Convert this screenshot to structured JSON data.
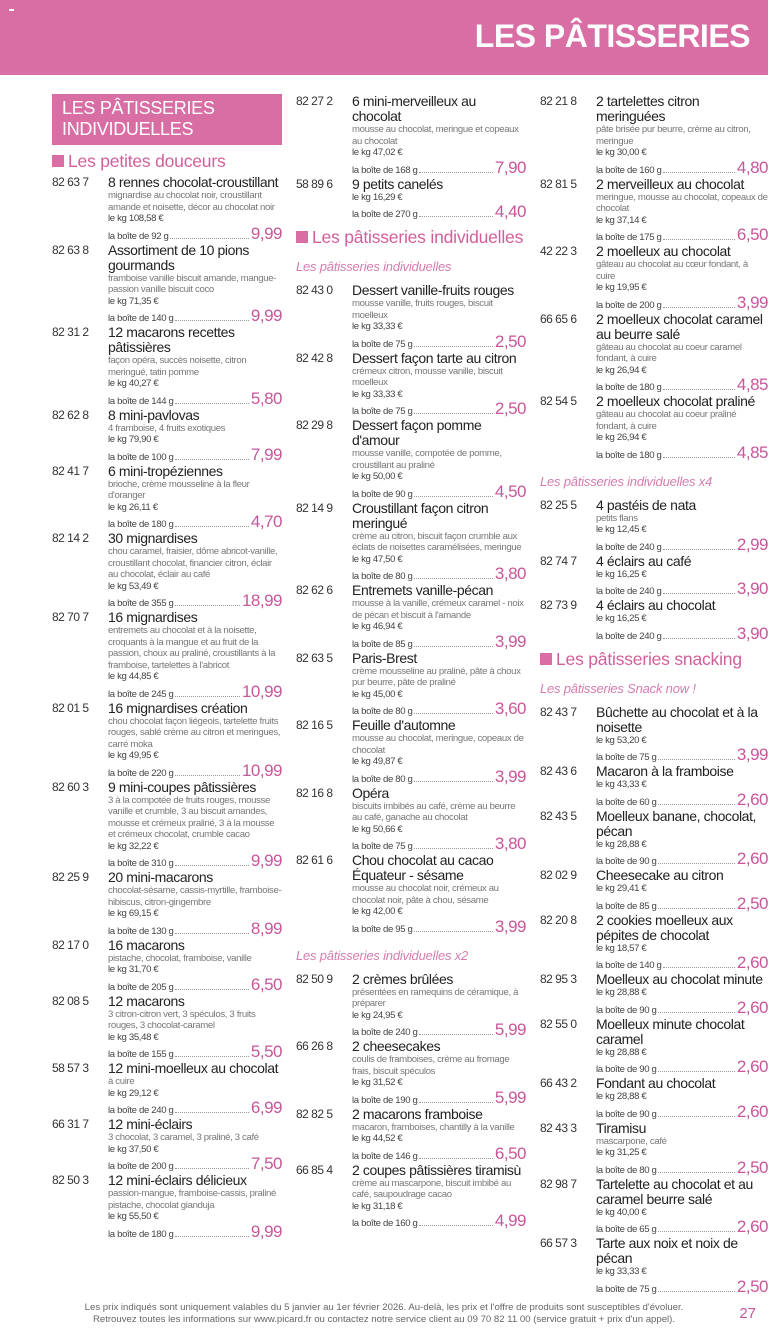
{
  "header": {
    "title": "LES PÂTISSERIES"
  },
  "colors": {
    "brand_pink": "#d96ea5",
    "price_pink": "#c9569a"
  },
  "columns": [
    {
      "blocks": [
        {
          "type": "banner",
          "text": "LES PÂTISSERIES INDIVIDUELLES"
        },
        {
          "type": "section",
          "text": "Les petites douceurs"
        },
        {
          "type": "item",
          "code": "82 63 7",
          "name": "8 rennes chocolat-croustillant",
          "desc": "mignardise au chocolat noir, croustillant amande et noisette, décor au chocolat noir",
          "kg": "le kg 108,58 €",
          "box": "la boîte de 92 g",
          "price": "9,99"
        },
        {
          "type": "item",
          "code": "82 63 8",
          "name": "Assortiment de 10 pions gourmands",
          "desc": "framboise vanille biscuit amande, mangue-passion vanille biscuit coco",
          "kg": "le kg 71,35 €",
          "box": "la boîte de 140 g",
          "price": "9,99"
        },
        {
          "type": "item",
          "code": "82 31 2",
          "name": "12 macarons recettes pâtissières",
          "desc": "façon opéra, succès noisette, citron meringué, tatin pomme",
          "kg": "le kg 40,27 €",
          "box": "la boîte de 144 g",
          "price": "5,80"
        },
        {
          "type": "item",
          "code": "82 62 8",
          "name": "8 mini-pavlovas",
          "desc": "4 framboise, 4 fruits exotiques",
          "kg": "le kg 79,90 €",
          "box": "la boîte de 100 g",
          "price": "7,99"
        },
        {
          "type": "item",
          "code": "82 41 7",
          "name": "6 mini-tropéziennes",
          "desc": "brioche, crème mousseline à la fleur d'oranger",
          "kg": "le kg 26,11 €",
          "box": "la boîte de 180 g",
          "price": "4,70"
        },
        {
          "type": "item",
          "code": "82 14 2",
          "name": "30 mignardises",
          "desc": "chou caramel, fraisier, dôme abricot-vanille, croustillant chocolat, financier citron, éclair au chocolat, éclair au café",
          "kg": "le kg 53,49 €",
          "box": "la boîte de 355 g",
          "price": "18,99"
        },
        {
          "type": "item",
          "code": "82 70 7",
          "name": "16 mignardises",
          "desc": "entremets au chocolat et à la noisette, croquants à la mangue et au fruit de la passion, choux au praliné, croustillants à la framboise, tartelettes à l'abricot",
          "kg": "le kg 44,85 €",
          "box": "la boîte de 245 g",
          "price": "10,99"
        },
        {
          "type": "item",
          "code": "82 01 5",
          "name": "16 mignardises création",
          "desc": "chou chocolat façon liégeois, tartelette fruits rouges, sablé crème au citron et meringues, carré moka",
          "kg": "le kg 49,95 €",
          "box": "la boîte de 220 g",
          "price": "10,99"
        },
        {
          "type": "item",
          "code": "82 60 3",
          "name": "9 mini-coupes pâtissières",
          "desc": "3 à la compotée de fruits rouges, mousse vanille et crumble, 3 au biscuit amandes, mousse et crémeux praliné, 3 à la mousse et crémeux chocolat, crumble cacao",
          "kg": "le kg 32,22 €",
          "box": "la boîte de 310 g",
          "price": "9,99"
        },
        {
          "type": "item",
          "code": "82 25 9",
          "name": "20 mini-macarons",
          "desc": "chocolat-sésame, cassis-myrtille, framboise-hibiscus, citron-gingembre",
          "kg": "le kg 69,15 €",
          "box": "la boîte de 130 g",
          "price": "8,99"
        },
        {
          "type": "item",
          "code": "82 17 0",
          "name": "16 macarons",
          "desc": "pistache, chocolat, framboise, vanille",
          "kg": "le kg 31,70 €",
          "box": "la boîte de 205 g",
          "price": "6,50"
        },
        {
          "type": "item",
          "code": "82 08 5",
          "name": "12 macarons",
          "desc": "3 citron-citron vert, 3 spéculos, 3 fruits rouges, 3 chocolat-caramel",
          "kg": "le kg 35,48 €",
          "box": "la boîte de 155 g",
          "price": "5,50"
        },
        {
          "type": "item",
          "code": "58 57 3",
          "name": "12 mini-moelleux au chocolat",
          "desc": "à cuire",
          "kg": "le kg 29,12 €",
          "box": "la boîte de 240 g",
          "price": "6,99"
        },
        {
          "type": "item",
          "code": "66 31 7",
          "name": "12 mini-éclairs",
          "desc": "3 chocolat, 3 caramel, 3 praliné, 3 café",
          "kg": "le kg 37,50 €",
          "box": "la boîte de 200 g",
          "price": "7,50"
        },
        {
          "type": "item",
          "code": "82 50 3",
          "name": "12 mini-éclairs délicieux",
          "desc": "passion-mangue, framboise-cassis, praliné pistache, chocolat gianduja",
          "kg": "le kg 55,50 €",
          "box": "la boîte de 180 g",
          "price": "9,99"
        }
      ]
    },
    {
      "blocks": [
        {
          "type": "item",
          "code": "82 27 2",
          "name": "6 mini-merveilleux au chocolat",
          "desc": "mousse au chocolat, meringue et copeaux au chocolat",
          "kg": "le kg 47,02 €",
          "box": "la boîte de 168 g",
          "price": "7,90"
        },
        {
          "type": "item",
          "code": "58 89 6",
          "name": "9 petits canelés",
          "kg": "le kg 16,29 €",
          "box": "la boîte de 270 g",
          "price": "4,40"
        },
        {
          "type": "section",
          "text": "Les pâtisseries individuelles"
        },
        {
          "type": "subsection",
          "text": "Les pâtisseries individuelles"
        },
        {
          "type": "item",
          "code": "82 43 0",
          "name": "Dessert vanille-fruits rouges",
          "desc": "mousse vanille, fruits rouges, biscuit moelleux",
          "kg": "le kg 33,33 €",
          "box": "la boîte de 75 g",
          "price": "2,50"
        },
        {
          "type": "item",
          "code": "82 42 8",
          "name": "Dessert façon tarte au citron",
          "desc": "crémeux citron, mousse vanille, biscuit moelleux",
          "kg": "le kg 33,33 €",
          "box": "la boîte de 75 g",
          "price": "2,50"
        },
        {
          "type": "item",
          "code": "82 29 8",
          "name": "Dessert façon pomme d'amour",
          "desc": "mousse vanille, compotée de pomme, croustillant au praliné",
          "kg": "le kg 50,00 €",
          "box": "la boîte de 90 g",
          "price": "4,50"
        },
        {
          "type": "item",
          "code": "82 14 9",
          "name": "Croustillant façon citron meringué",
          "desc": "crème au citron, biscuit façon crumble aux éclats de noisettes caramélisées, meringue",
          "kg": "le kg 47,50 €",
          "box": "la boîte de 80 g",
          "price": "3,80"
        },
        {
          "type": "item",
          "code": "82 62 6",
          "name": "Entremets vanille-pécan",
          "desc": "mousse à la vanille, crémeux caramel - noix de pécan et biscuit à l'amande",
          "kg": "le kg 46,94 €",
          "box": "la boîte de 85 g",
          "price": "3,99"
        },
        {
          "type": "item",
          "code": "82 63 5",
          "name": "Paris-Brest",
          "desc": "crème mousseline au praliné, pâte à choux pur beurre, pâte de praliné",
          "kg": "le kg 45,00 €",
          "box": "la boîte de 80 g",
          "price": "3,60"
        },
        {
          "type": "item",
          "code": "82 16 5",
          "name": "Feuille d'automne",
          "desc": "mousse au chocolat, meringue, copeaux de chocolat",
          "kg": "le kg 49,87 €",
          "box": "la boîte de 80 g",
          "price": "3,99"
        },
        {
          "type": "item",
          "code": "82 16 8",
          "name": "Opéra",
          "desc": "biscuits imbibés au café, crème au beurre au café, ganache au chocolat",
          "kg": "le kg 50,66 €",
          "box": "la boîte de 75 g",
          "price": "3,80"
        },
        {
          "type": "item",
          "code": "82 61 6",
          "name": "Chou chocolat au cacao Équateur - sésame",
          "desc": "mousse au chocolat noir, crémeux au chocolat noir, pâte à chou, sésame",
          "kg": "le kg 42,00 €",
          "box": "la boîte de 95 g",
          "price": "3,99"
        },
        {
          "type": "subsection",
          "text": "Les pâtisseries individuelles x2"
        },
        {
          "type": "item",
          "code": "82 50 9",
          "name": "2 crèmes brûlées",
          "desc": "présentées en ramequins de céramique, à préparer",
          "kg": "le kg 24,95 €",
          "box": "la boîte de 240 g",
          "price": "5,99"
        },
        {
          "type": "item",
          "code": "66 26 8",
          "name": "2 cheesecakes",
          "desc": "coulis de framboises, crème au fromage frais, biscuit spéculos",
          "kg": "le kg 31,52 €",
          "box": "la boîte de 190 g",
          "price": "5,99"
        },
        {
          "type": "item",
          "code": "82 82 5",
          "name": "2 macarons framboise",
          "desc": "macaron, framboises, chantilly à la vanille",
          "kg": "le kg 44,52 €",
          "box": "la boîte de 146 g",
          "price": "6,50"
        },
        {
          "type": "item",
          "code": "66 85 4",
          "name": "2 coupes pâtissières tiramisù",
          "desc": "crème au mascarpone, biscuit imbibé au café, saupoudrage cacao",
          "kg": "le kg 31,18 €",
          "box": "la boîte de 160 g",
          "price": "4,99"
        }
      ]
    },
    {
      "blocks": [
        {
          "type": "item",
          "code": "82 21 8",
          "name": "2 tartelettes citron meringuées",
          "desc": "pâte brisée pur beurre, crème au citron, meringue",
          "kg": "le kg 30,00 €",
          "box": "la boîte de 160 g",
          "price": "4,80"
        },
        {
          "type": "item",
          "code": "82 81 5",
          "name": "2 merveilleux au chocolat",
          "desc": "meringue, mousse au chocolat, copeaux de chocolat",
          "kg": "le kg 37,14 €",
          "box": "la boîte de 175 g",
          "price": "6,50"
        },
        {
          "type": "item",
          "code": "42 22 3",
          "name": "2 moelleux au chocolat",
          "desc": "gâteau au chocolat au cœur fondant, à cuire",
          "kg": "le kg 19,95 €",
          "box": "la boîte de 200 g",
          "price": "3,99"
        },
        {
          "type": "item",
          "code": "66 65 6",
          "name": "2 moelleux chocolat caramel au beurre salé",
          "desc": "gâteau au chocolat au coeur caramel fondant, à cuire",
          "kg": "le kg 26,94 €",
          "box": "la boîte de 180 g",
          "price": "4,85"
        },
        {
          "type": "item",
          "code": "82 54 5",
          "name": "2 moelleux chocolat praliné",
          "desc": "gâteau au chocolat au coeur praliné fondant, à cuire",
          "kg": "le kg 26,94 €",
          "box": "la boîte de 180 g",
          "price": "4,85"
        },
        {
          "type": "subsection",
          "text": "Les pâtisseries individuelles x4"
        },
        {
          "type": "item",
          "code": "82 25 5",
          "name": "4 pastéis de nata",
          "desc": "petits flans",
          "kg": "le kg 12,45 €",
          "box": "la boîte de 240 g",
          "price": "2,99"
        },
        {
          "type": "item",
          "code": "82 74 7",
          "name": "4 éclairs au café",
          "kg": "le kg 16,25 €",
          "box": "la boîte de 240 g",
          "price": "3,90"
        },
        {
          "type": "item",
          "code": "82 73 9",
          "name": "4 éclairs au chocolat",
          "kg": "le kg 16,25 €",
          "box": "la boîte de 240 g",
          "price": "3,90"
        },
        {
          "type": "section",
          "text": "Les pâtisseries snacking"
        },
        {
          "type": "subsection",
          "text": "Les pâtisseries Snack now !"
        },
        {
          "type": "item",
          "code": "82 43 7",
          "name": "Bûchette au chocolat et à la noisette",
          "kg": "le kg 53,20 €",
          "box": "la boîte de 75 g",
          "price": "3,99"
        },
        {
          "type": "item",
          "code": "82 43 6",
          "name": "Macaron à la framboise",
          "kg": "le kg 43,33 €",
          "box": "la boîte de 60 g",
          "price": "2,60"
        },
        {
          "type": "item",
          "code": "82 43 5",
          "name": "Moelleux banane, chocolat, pécan",
          "kg": "le kg 28,88 €",
          "box": "la boîte de 90 g",
          "price": "2,60"
        },
        {
          "type": "item",
          "code": "82 02 9",
          "name": "Cheesecake au citron",
          "kg": "le kg 29,41 €",
          "box": "la boîte de 85 g",
          "price": "2,50"
        },
        {
          "type": "item",
          "code": "82 20 8",
          "name": "2 cookies moelleux aux pépites de chocolat",
          "kg": "le kg 18,57 €",
          "box": "la boîte de 140 g",
          "price": "2,60"
        },
        {
          "type": "item",
          "code": "82 95 3",
          "name": "Moelleux au chocolat minute",
          "kg": "le kg 28,88 €",
          "box": "la boîte de 90 g",
          "price": "2,60"
        },
        {
          "type": "item",
          "code": "82 55 0",
          "name": "Moelleux minute chocolat caramel",
          "kg": "le kg 28,88 €",
          "box": "la boîte de 90 g",
          "price": "2,60"
        },
        {
          "type": "item",
          "code": "66 43 2",
          "name": "Fondant au chocolat",
          "kg": "le kg 28,88 €",
          "box": "la boîte de 90 g",
          "price": "2,60"
        },
        {
          "type": "item",
          "code": "82 43 3",
          "name": "Tiramisu",
          "desc": "mascarpone, café",
          "kg": "le kg 31,25 €",
          "box": "la boîte de 80 g",
          "price": "2,50"
        },
        {
          "type": "item",
          "code": "82 98 7",
          "name": "Tartelette au chocolat et au caramel beurre salé",
          "kg": "le kg 40,00 €",
          "box": "la boîte de 65 g",
          "price": "2,60"
        },
        {
          "type": "item",
          "code": "66 57 3",
          "name": "Tarte aux noix et noix de pécan",
          "kg": "le kg 33,33 €",
          "box": "la boîte de 75 g",
          "price": "2,50"
        }
      ]
    }
  ],
  "footer": {
    "line1": "Les prix indiqués sont uniquement valables du 5 janvier au 1er février 2026. Au-delà, les prix et l'offre de produits sont susceptibles d'évoluer.",
    "line2": "Retrouvez toutes les informations sur www.picard.fr ou contactez notre service client au 09 70 82 11 00 (service gratuit + prix d'un appel).",
    "page_number": "27"
  }
}
